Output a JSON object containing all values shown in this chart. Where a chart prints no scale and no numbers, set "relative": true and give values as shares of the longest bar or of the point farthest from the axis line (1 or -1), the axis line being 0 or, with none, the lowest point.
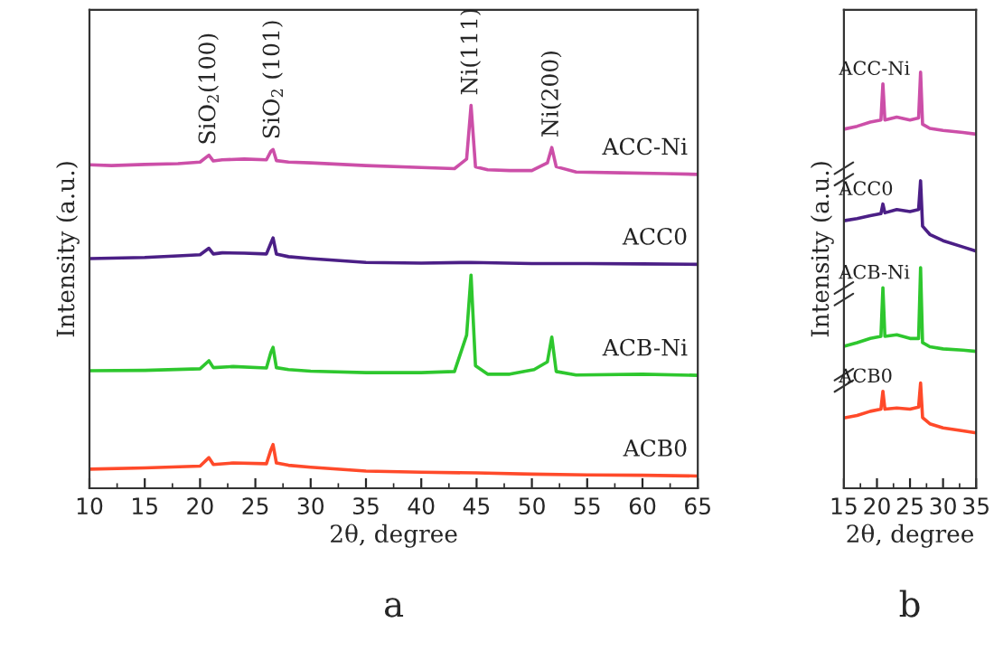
{
  "chart_data": [
    {
      "type": "line",
      "title": "a",
      "xlabel": "2θ, degree",
      "ylabel": "Intensity (a.u.)",
      "relative": true,
      "xlim": [
        10,
        65
      ],
      "xticks": [
        10,
        15,
        20,
        25,
        30,
        35,
        40,
        45,
        50,
        55,
        60,
        65
      ],
      "grid": false,
      "annotations": [
        {
          "text": "SiO$_{2}$(100)",
          "x": 20.8,
          "y": 0.87
        },
        {
          "text": "SiO$_{2}$ (101)",
          "x": 26.6,
          "y": 0.885
        },
        {
          "text": "Ni(111)",
          "x": 44.5,
          "y": 1.0
        },
        {
          "text": "Ni(200)",
          "x": 51.8,
          "y": 0.89
        }
      ],
      "series": [
        {
          "name": "ACC-Ni",
          "color": "#cc4fa8",
          "x": [
            10,
            12,
            15,
            18,
            20,
            20.8,
            21.2,
            22,
            24,
            26,
            26.4,
            26.6,
            26.9,
            28,
            30,
            35,
            40,
            43,
            44.1,
            44.5,
            44.9,
            46,
            48,
            50,
            51.4,
            51.8,
            52.2,
            54,
            58,
            62,
            65
          ],
          "values": [
            0.845,
            0.843,
            0.846,
            0.848,
            0.852,
            0.87,
            0.855,
            0.858,
            0.86,
            0.858,
            0.88,
            0.885,
            0.856,
            0.852,
            0.85,
            0.843,
            0.838,
            0.835,
            0.86,
            1.0,
            0.84,
            0.832,
            0.83,
            0.83,
            0.85,
            0.89,
            0.84,
            0.826,
            0.824,
            0.822,
            0.82
          ]
        },
        {
          "name": "ACC0",
          "color": "#4b1f86",
          "x": [
            10,
            15,
            18,
            20,
            20.8,
            21.2,
            22,
            24,
            26,
            26.4,
            26.6,
            26.9,
            28,
            30,
            35,
            40,
            44.5,
            50,
            55,
            60,
            65
          ],
          "values": [
            0.6,
            0.603,
            0.607,
            0.61,
            0.627,
            0.612,
            0.615,
            0.614,
            0.612,
            0.64,
            0.654,
            0.612,
            0.605,
            0.6,
            0.59,
            0.588,
            0.59,
            0.587,
            0.587,
            0.586,
            0.585
          ]
        },
        {
          "name": "ACB-Ni",
          "color": "#2ec72e",
          "x": [
            10,
            15,
            20,
            20.8,
            21.2,
            23,
            26,
            26.4,
            26.6,
            26.9,
            28,
            30,
            35,
            40,
            43,
            44.1,
            44.5,
            44.9,
            46,
            48,
            50.2,
            51.4,
            51.8,
            52.2,
            54,
            60,
            65
          ],
          "values": [
            0.307,
            0.308,
            0.312,
            0.333,
            0.315,
            0.318,
            0.314,
            0.355,
            0.368,
            0.315,
            0.31,
            0.306,
            0.302,
            0.302,
            0.305,
            0.4,
            0.557,
            0.32,
            0.298,
            0.298,
            0.31,
            0.33,
            0.395,
            0.305,
            0.296,
            0.298,
            0.295
          ]
        },
        {
          "name": "ACB0",
          "color": "#ff4a2a",
          "x": [
            10,
            15,
            20,
            20.8,
            21.2,
            23,
            26,
            26.4,
            26.6,
            26.9,
            28,
            30,
            35,
            40,
            45,
            50,
            55,
            60,
            65
          ],
          "values": [
            0.05,
            0.053,
            0.058,
            0.08,
            0.062,
            0.066,
            0.064,
            0.1,
            0.114,
            0.066,
            0.06,
            0.055,
            0.045,
            0.042,
            0.04,
            0.037,
            0.035,
            0.034,
            0.032
          ]
        }
      ]
    },
    {
      "type": "line",
      "title": "b",
      "xlabel": "2θ, degree",
      "ylabel": "Intensity (a.u.)",
      "relative": true,
      "xlim": [
        15,
        35
      ],
      "xticks": [
        15,
        20,
        25,
        30,
        35
      ],
      "grid": false,
      "series": [
        {
          "name": "ACC-Ni",
          "color": "#cc4fa8",
          "x": [
            15,
            17,
            19,
            20.6,
            20.9,
            21.2,
            23,
            25,
            26.3,
            26.6,
            26.9,
            28,
            30,
            33,
            35
          ],
          "values": [
            0.863,
            0.87,
            0.88,
            0.885,
            0.972,
            0.885,
            0.892,
            0.885,
            0.89,
            1.0,
            0.875,
            0.865,
            0.86,
            0.855,
            0.851
          ]
        },
        {
          "name": "ACC0",
          "color": "#4b1f86",
          "x": [
            15,
            17,
            19,
            20.6,
            20.9,
            21.2,
            23,
            25,
            26.3,
            26.6,
            26.9,
            28,
            30,
            33,
            35
          ],
          "values": [
            0.643,
            0.648,
            0.655,
            0.66,
            0.683,
            0.662,
            0.67,
            0.665,
            0.67,
            0.739,
            0.63,
            0.61,
            0.595,
            0.58,
            0.57
          ]
        },
        {
          "name": "ACB-Ni",
          "color": "#2ec72e",
          "x": [
            15,
            17,
            19,
            20.6,
            20.9,
            21.2,
            23,
            25,
            26.3,
            26.6,
            26.9,
            28,
            30,
            33,
            35
          ],
          "values": [
            0.341,
            0.35,
            0.36,
            0.365,
            0.482,
            0.365,
            0.369,
            0.36,
            0.36,
            0.53,
            0.35,
            0.34,
            0.335,
            0.332,
            0.329
          ]
        },
        {
          "name": "ACB0",
          "color": "#ff4a2a",
          "x": [
            15,
            17,
            19,
            20.6,
            20.9,
            21.2,
            23,
            25,
            26.3,
            26.6,
            26.9,
            28,
            30,
            33,
            35
          ],
          "values": [
            0.169,
            0.175,
            0.185,
            0.19,
            0.233,
            0.19,
            0.193,
            0.19,
            0.195,
            0.253,
            0.17,
            0.155,
            0.145,
            0.138,
            0.133
          ]
        }
      ]
    }
  ]
}
